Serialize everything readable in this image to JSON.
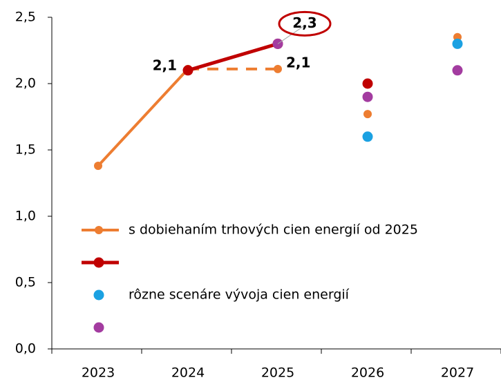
{
  "chart_data": {
    "type": "line",
    "categories": [
      "2023",
      "2024",
      "2025",
      "2026",
      "2027"
    ],
    "ylim": [
      0,
      2.5
    ],
    "yticks": [
      {
        "value": 0,
        "label": "0,0"
      },
      {
        "value": 0.5,
        "label": "0,5"
      },
      {
        "value": 1,
        "label": "1,0"
      },
      {
        "value": 1.5,
        "label": "1,5"
      },
      {
        "value": 2,
        "label": "2,0"
      },
      {
        "value": 2.5,
        "label": "2,5"
      }
    ],
    "legend": "left",
    "series": [
      {
        "name": "s dobiehaním trhových cien energií od 2025",
        "color": "#ed7d31",
        "values": [
          1.38,
          2.11,
          2.11,
          1.77,
          2.35
        ],
        "segments": [
          "solid",
          "dashed",
          null,
          null
        ],
        "value_labels": [
          null,
          null,
          "2,1",
          null,
          null
        ]
      },
      {
        "color": "#c00000",
        "values": [
          null,
          2.1,
          2.3,
          2.0,
          null
        ],
        "segments": [
          null,
          "solid",
          null,
          null
        ],
        "value_labels": [
          null,
          "2,1",
          "2,3",
          null,
          null
        ],
        "highlight": 2
      },
      {
        "name": "rôzne scenáre vývoja cien energií",
        "color": "#1ba1e2",
        "values": [
          null,
          null,
          null,
          1.6,
          2.3
        ],
        "segments": [
          null,
          null,
          null,
          null
        ]
      },
      {
        "color": "#a33ca0",
        "values": [
          null,
          null,
          2.3,
          1.9,
          2.1
        ],
        "segments": [
          null,
          null,
          null,
          null
        ]
      }
    ]
  }
}
